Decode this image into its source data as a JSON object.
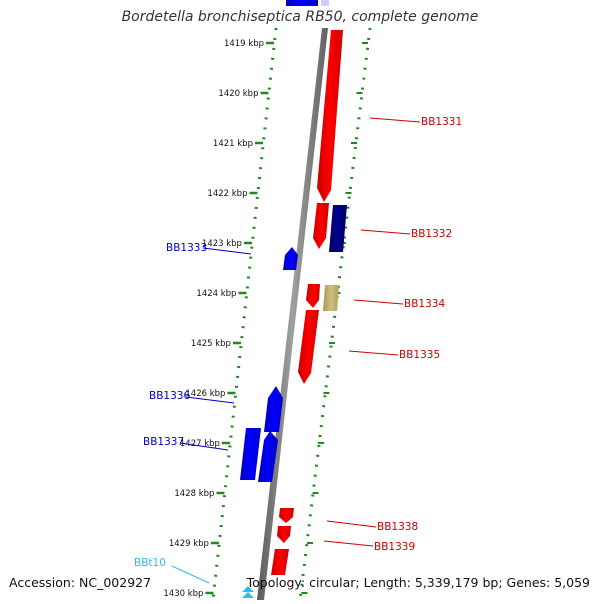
{
  "title": "Bordetella bronchiseptica RB50, complete genome",
  "footer": {
    "accession": "Accession: NC_002927",
    "summary": "Topology: circular; Length: 5,339,179 bp; Genes: 5,059"
  },
  "ruler": [
    "1419 kbp",
    "1420 kbp",
    "1421 kbp",
    "1422 kbp",
    "1423 kbp",
    "1424 kbp",
    "1425 kbp",
    "1426 kbp",
    "1427 kbp",
    "1428 kbp",
    "1429 kbp",
    "1430 kbp"
  ],
  "genes": [
    {
      "label": "BB1331",
      "strand": "forward"
    },
    {
      "label": "BB1332",
      "strand": "forward"
    },
    {
      "label": "BB1333",
      "strand": "reverse"
    },
    {
      "label": "BB1334",
      "strand": "forward"
    },
    {
      "label": "BB1335",
      "strand": "forward"
    },
    {
      "label": "BB1336",
      "strand": "reverse"
    },
    {
      "label": "BB1337",
      "strand": "reverse"
    },
    {
      "label": "BB1338",
      "strand": "forward"
    },
    {
      "label": "BB1339",
      "strand": "forward"
    },
    {
      "label": "BBt10",
      "strand": "reverse"
    }
  ],
  "colors": {
    "forward": "#ff0000",
    "reverse": "#0000ff",
    "forward_label": "#cc0000",
    "reverse_label": "#0000cc",
    "trna_label": "#33bbee",
    "dark_blue": "#000080",
    "khaki": "#c8b878",
    "backbone": "#808080",
    "ticks": "#228822"
  }
}
